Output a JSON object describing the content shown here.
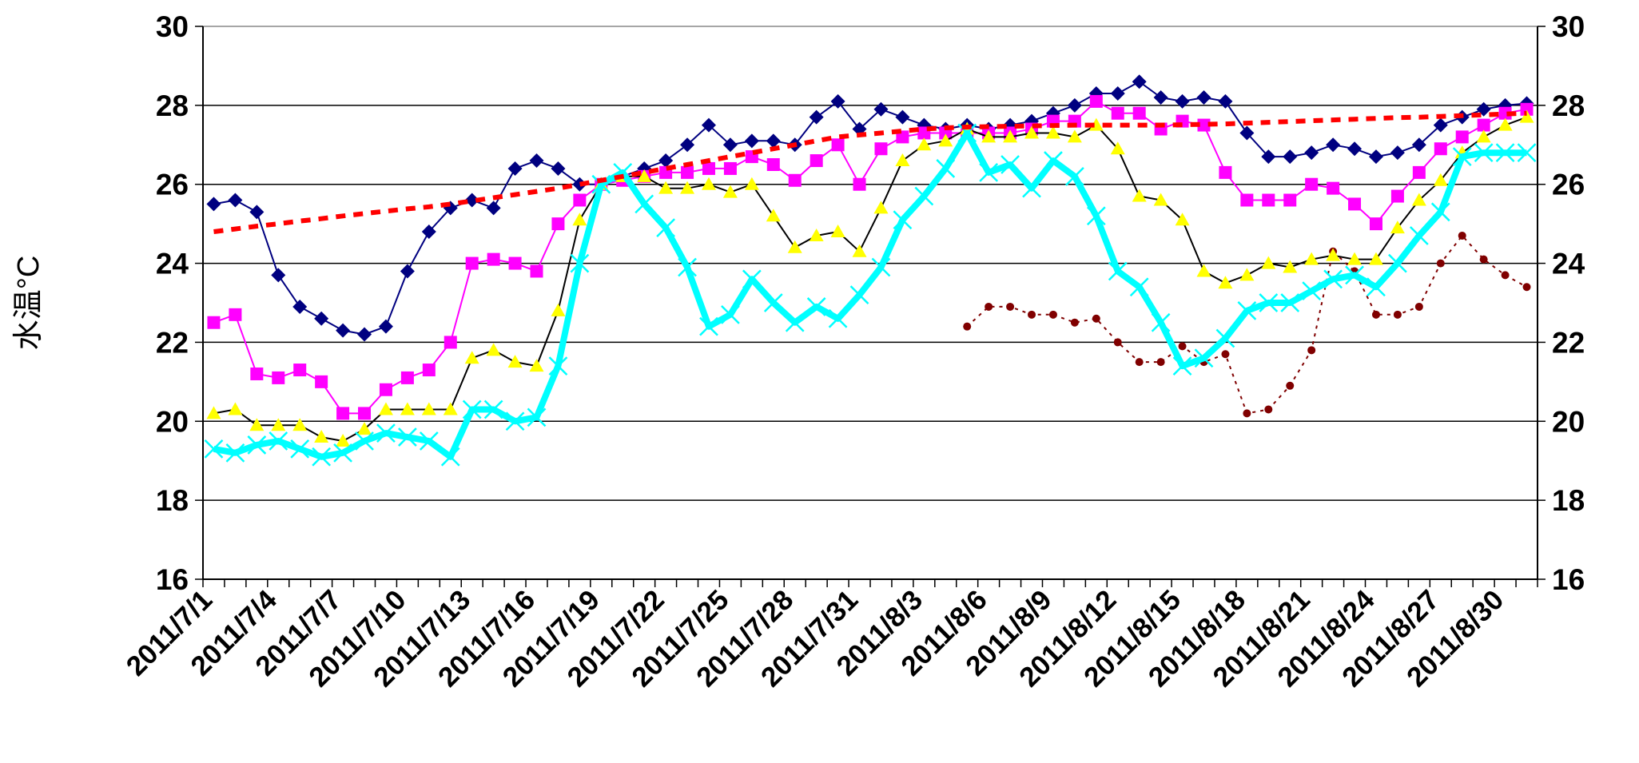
{
  "chart_data": {
    "type": "line",
    "y_label": "水温°C",
    "categories": [
      "2011/7/1",
      null,
      null,
      "2011/7/4",
      null,
      null,
      "2011/7/7",
      null,
      null,
      "2011/7/10",
      null,
      null,
      "2011/7/13",
      null,
      null,
      "2011/7/16",
      null,
      null,
      "2011/7/19",
      null,
      null,
      "2011/7/22",
      null,
      null,
      "2011/7/25",
      null,
      null,
      "2011/7/28",
      null,
      null,
      "2011/7/31",
      null,
      null,
      "2011/8/3",
      null,
      null,
      "2011/8/6",
      null,
      null,
      "2011/8/9",
      null,
      null,
      "2011/8/12",
      null,
      null,
      "2011/8/15",
      null,
      null,
      "2011/8/18",
      null,
      null,
      "2011/8/21",
      null,
      null,
      "2011/8/24",
      null,
      null,
      "2011/8/27",
      null,
      null,
      "2011/8/30",
      null
    ],
    "ylim": [
      16,
      30
    ],
    "yticks": [
      16,
      18,
      20,
      22,
      24,
      26,
      28,
      30
    ],
    "y2lim": [
      16,
      30
    ],
    "y2ticks": [
      16,
      18,
      20,
      22,
      24,
      26,
      28,
      30
    ],
    "grid": true,
    "series": [
      {
        "color": "#000080",
        "line_color": "#000080",
        "marker": "diamond",
        "width": 2,
        "values": [
          25.5,
          25.6,
          25.3,
          23.7,
          22.9,
          22.6,
          22.3,
          22.2,
          22.4,
          23.8,
          24.8,
          25.4,
          25.6,
          25.4,
          26.4,
          26.6,
          26.4,
          26.0,
          26.0,
          26.2,
          26.4,
          26.6,
          27.0,
          27.5,
          27.0,
          27.1,
          27.1,
          27.0,
          27.7,
          28.1,
          27.4,
          27.9,
          27.7,
          27.5,
          27.4,
          27.5,
          27.4,
          27.5,
          27.6,
          27.8,
          28.0,
          28.3,
          28.3,
          28.6,
          28.2,
          28.1,
          28.2,
          28.1,
          27.3,
          26.7,
          26.7,
          26.8,
          27.0,
          26.9,
          26.7,
          26.8,
          27.0,
          27.5,
          27.7,
          27.9,
          28.0,
          28.05
        ]
      },
      {
        "color": "#ff00ff",
        "line_color": "#ff00ff",
        "marker": "square",
        "width": 2,
        "values": [
          22.5,
          22.7,
          21.2,
          21.1,
          21.3,
          21.0,
          20.2,
          20.2,
          20.8,
          21.1,
          21.3,
          22.0,
          24.0,
          24.1,
          24.0,
          23.8,
          25.0,
          25.6,
          26.0,
          26.1,
          26.2,
          26.3,
          26.3,
          26.4,
          26.4,
          26.7,
          26.5,
          26.1,
          26.6,
          27.0,
          26.0,
          26.9,
          27.2,
          27.3,
          27.3,
          27.3,
          27.3,
          27.3,
          27.4,
          27.6,
          27.6,
          28.1,
          27.8,
          27.8,
          27.4,
          27.6,
          27.5,
          26.3,
          25.6,
          25.6,
          25.6,
          26.0,
          25.9,
          25.5,
          25.0,
          25.7,
          26.3,
          26.9,
          27.2,
          27.5,
          27.8,
          27.9
        ]
      },
      {
        "color": "#ffff00",
        "line_color": "#000000",
        "marker": "triangle",
        "width": 2,
        "values": [
          20.2,
          20.3,
          19.9,
          19.9,
          19.9,
          19.6,
          19.5,
          19.8,
          20.3,
          20.3,
          20.3,
          20.3,
          21.6,
          21.8,
          21.5,
          21.4,
          22.8,
          25.1,
          26.0,
          26.2,
          26.2,
          25.9,
          25.9,
          26.0,
          25.8,
          26.0,
          25.2,
          24.4,
          24.7,
          24.8,
          24.3,
          25.4,
          26.6,
          27.0,
          27.1,
          27.4,
          27.2,
          27.2,
          27.3,
          27.3,
          27.2,
          27.5,
          26.9,
          25.7,
          25.6,
          25.1,
          23.8,
          23.5,
          23.7,
          24.0,
          23.9,
          24.1,
          24.2,
          24.1,
          24.1,
          24.9,
          25.6,
          26.1,
          26.8,
          27.2,
          27.5,
          27.7
        ]
      },
      {
        "color": "#00ffff",
        "line_color": "#00ffff",
        "marker": "x",
        "width": 8,
        "values": [
          19.3,
          19.2,
          19.4,
          19.5,
          19.3,
          19.1,
          19.2,
          19.5,
          19.7,
          19.6,
          19.5,
          19.1,
          20.3,
          20.3,
          20.0,
          20.1,
          21.4,
          24.0,
          26.0,
          26.3,
          25.5,
          24.9,
          23.9,
          22.4,
          22.7,
          23.6,
          23.0,
          22.5,
          22.9,
          22.6,
          23.2,
          23.9,
          25.1,
          25.7,
          26.4,
          27.3,
          26.3,
          26.5,
          25.9,
          26.6,
          26.2,
          25.2,
          23.8,
          23.4,
          22.5,
          21.4,
          21.6,
          22.1,
          22.8,
          23.0,
          23.0,
          23.3,
          23.6,
          23.7,
          23.4,
          24.0,
          24.7,
          25.3,
          26.7,
          26.8,
          26.8,
          26.8
        ]
      },
      {
        "color": "#800000",
        "line_color": "#800000",
        "marker": "circle",
        "width": 2,
        "dash": "4 6",
        "values": [
          null,
          null,
          null,
          null,
          null,
          null,
          null,
          null,
          null,
          null,
          null,
          null,
          null,
          null,
          null,
          null,
          null,
          null,
          null,
          null,
          null,
          null,
          null,
          null,
          null,
          null,
          null,
          null,
          null,
          null,
          null,
          null,
          null,
          null,
          null,
          22.4,
          22.9,
          22.9,
          22.7,
          22.7,
          22.5,
          22.6,
          22.0,
          21.5,
          21.5,
          21.9,
          21.5,
          21.7,
          20.2,
          20.3,
          20.9,
          21.8,
          24.3,
          23.8,
          22.7,
          22.7,
          22.9,
          24.0,
          24.7,
          24.1,
          23.7,
          23.4
        ]
      },
      {
        "color": "#ff0000",
        "line_color": "#ff0000",
        "marker": "none",
        "width": 6,
        "dash": "12 10",
        "values": [
          24.8,
          24.87,
          24.94,
          25.0,
          25.07,
          25.13,
          25.2,
          25.26,
          25.32,
          25.38,
          25.43,
          25.5,
          25.58,
          25.66,
          25.74,
          25.82,
          25.9,
          26.0,
          26.1,
          26.2,
          26.3,
          26.4,
          26.5,
          26.6,
          26.7,
          26.8,
          26.9,
          27.0,
          27.1,
          27.2,
          27.25,
          27.3,
          27.35,
          27.4,
          27.43,
          27.45,
          27.46,
          27.47,
          27.48,
          27.49,
          27.5,
          27.5,
          27.5,
          27.5,
          27.5,
          27.51,
          27.52,
          27.53,
          27.55,
          27.57,
          27.59,
          27.61,
          27.63,
          27.65,
          27.67,
          27.69,
          27.7,
          27.72,
          27.74,
          27.76,
          27.78,
          27.8
        ]
      }
    ]
  }
}
